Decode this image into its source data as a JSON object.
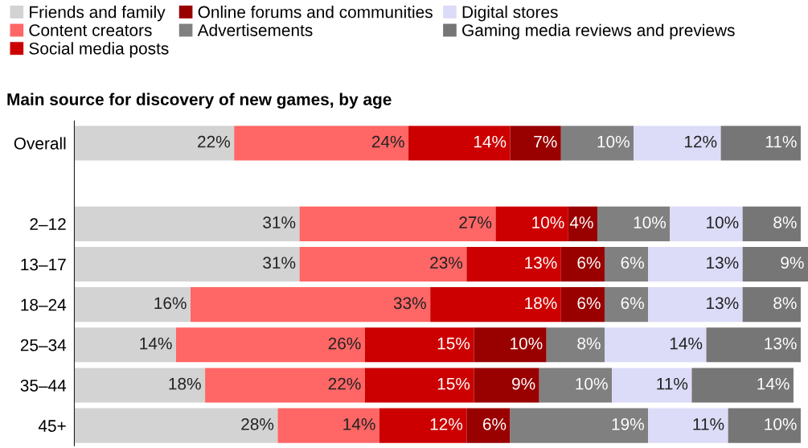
{
  "chart_data": {
    "type": "bar",
    "orientation": "horizontal",
    "stacked": true,
    "title": "Main source for discovery of new games, by age",
    "categories": [
      "Overall",
      null,
      "2–12",
      "13–17",
      "18–24",
      "25–34",
      "35–44",
      "45+"
    ],
    "tick_labels": "y",
    "legend": "top left",
    "grid": false,
    "series": [
      {
        "name": "Friends and family",
        "color": "#d3d3d3",
        "values": [
          22,
          null,
          31,
          31,
          16,
          14,
          18,
          28
        ],
        "value_labels": [
          "22%",
          null,
          "31%",
          "31%",
          "16%",
          "14%",
          "18%",
          "28%"
        ]
      },
      {
        "name": "Content creators",
        "color": "#ff6666",
        "values": [
          24,
          null,
          27,
          23,
          33,
          26,
          22,
          14
        ],
        "value_labels": [
          "24%",
          null,
          "27%",
          "23%",
          "33%",
          "26%",
          "22%",
          "14%"
        ]
      },
      {
        "name": "Social media posts",
        "color": "#cc0000",
        "values": [
          14,
          null,
          10,
          13,
          18,
          15,
          15,
          12
        ],
        "value_labels": [
          "14%",
          null,
          "10%",
          "13%",
          "18%",
          "15%",
          "15%",
          "12%"
        ]
      },
      {
        "name": "Online forums and communities",
        "color": "#990000",
        "values": [
          7,
          null,
          4,
          6,
          6,
          10,
          9,
          6
        ],
        "value_labels": [
          "7%",
          null,
          "4%",
          "6%",
          "6%",
          "10%",
          "9%",
          "6%"
        ]
      },
      {
        "name": "Advertisements",
        "color": "#808080",
        "values": [
          10,
          null,
          10,
          6,
          6,
          8,
          10,
          19
        ],
        "value_labels": [
          "10%",
          null,
          "10%",
          "6%",
          "6%",
          "8%",
          "10%",
          "19%"
        ]
      },
      {
        "name": "Digital stores",
        "color": "#dcdcf8",
        "values": [
          12,
          null,
          10,
          13,
          13,
          14,
          11,
          11
        ],
        "value_labels": [
          "12%",
          null,
          "10%",
          "13%",
          "13%",
          "14%",
          "11%",
          "11%"
        ]
      },
      {
        "name": "Gaming media reviews and previews",
        "color": "#767676",
        "values": [
          11,
          null,
          8,
          9,
          8,
          13,
          14,
          10
        ],
        "value_labels": [
          "11%",
          null,
          "8%",
          "9%",
          "8%",
          "13%",
          "14%",
          "10%"
        ]
      }
    ]
  }
}
